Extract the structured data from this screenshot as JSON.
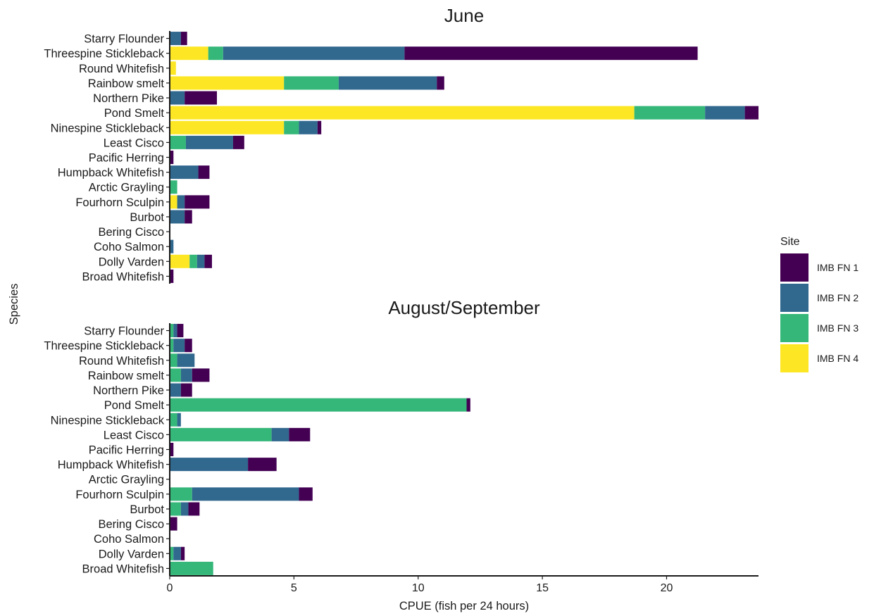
{
  "chart_data": {
    "type": "bar",
    "orientation": "horizontal",
    "stacked": true,
    "ylabel": "Species",
    "xlabel": "CPUE (fish per 24 hours)",
    "xlim": [
      0,
      23.7
    ],
    "xticks": [
      0,
      5,
      10,
      15,
      20
    ],
    "grid": false,
    "legend": {
      "title": "Site",
      "placement": "right",
      "entries": [
        {
          "name": "IMB FN 1",
          "color": "#440154"
        },
        {
          "name": "IMB FN 2",
          "color": "#31688e"
        },
        {
          "name": "IMB FN 3",
          "color": "#35b779"
        },
        {
          "name": "IMB FN 4",
          "color": "#fde725"
        }
      ]
    },
    "stack_order": [
      "IMB FN 4",
      "IMB FN 3",
      "IMB FN 2",
      "IMB FN 1"
    ],
    "categories": [
      "Starry Flounder",
      "Threespine Stickleback",
      "Round Whitefish",
      "Rainbow smelt",
      "Northern Pike",
      "Pond Smelt",
      "Ninespine Stickleback",
      "Least Cisco",
      "Pacific Herring",
      "Humpback Whitefish",
      "Arctic Grayling",
      "Fourhorn Sculpin",
      "Burbot",
      "Bering Cisco",
      "Coho Salmon",
      "Dolly Varden",
      "Broad Whitefish"
    ],
    "panels": [
      {
        "title": "June",
        "series": [
          {
            "name": "IMB FN 1",
            "values": [
              0.25,
              11.8,
              0,
              0.3,
              1.3,
              0.55,
              0.15,
              0.45,
              0.15,
              0.45,
              0,
              1.0,
              0.3,
              0,
              0,
              0.3,
              0.15
            ]
          },
          {
            "name": "IMB FN 2",
            "values": [
              0.45,
              7.3,
              0,
              3.95,
              0.6,
              1.6,
              0.75,
              1.9,
              0,
              1.15,
              0,
              0.3,
              0.6,
              0,
              0.15,
              0.3,
              0
            ]
          },
          {
            "name": "IMB FN 3",
            "values": [
              0,
              0.6,
              0,
              2.2,
              0,
              2.85,
              0.6,
              0.65,
              0,
              0,
              0.3,
              0,
              0,
              0,
              0,
              0.3,
              0
            ]
          },
          {
            "name": "IMB FN 4",
            "values": [
              0,
              1.55,
              0.25,
              4.6,
              0,
              18.7,
              4.6,
              0,
              0,
              0,
              0,
              0.3,
              0,
              0,
              0,
              0.8,
              0
            ]
          }
        ]
      },
      {
        "title": "August/September",
        "series": [
          {
            "name": "IMB FN 1",
            "values": [
              0.25,
              0.3,
              0,
              0.7,
              0.45,
              0.15,
              0,
              0.85,
              0.15,
              1.15,
              0,
              0.55,
              0.45,
              0.3,
              0,
              0.15,
              0
            ]
          },
          {
            "name": "IMB FN 2",
            "values": [
              0.15,
              0.45,
              0.7,
              0.45,
              0.45,
              0,
              0.15,
              0.7,
              0,
              3.15,
              0,
              4.3,
              0.3,
              0,
              0,
              0.3,
              0
            ]
          },
          {
            "name": "IMB FN 3",
            "values": [
              0.15,
              0.15,
              0.3,
              0.45,
              0,
              11.95,
              0.3,
              4.1,
              0,
              0,
              0,
              0.9,
              0.45,
              0,
              0,
              0.15,
              1.75
            ]
          },
          {
            "name": "IMB FN 4",
            "values": [
              0,
              0,
              0,
              0,
              0,
              0,
              0,
              0,
              0,
              0,
              0,
              0,
              0,
              0,
              0,
              0,
              0
            ]
          }
        ]
      }
    ]
  }
}
